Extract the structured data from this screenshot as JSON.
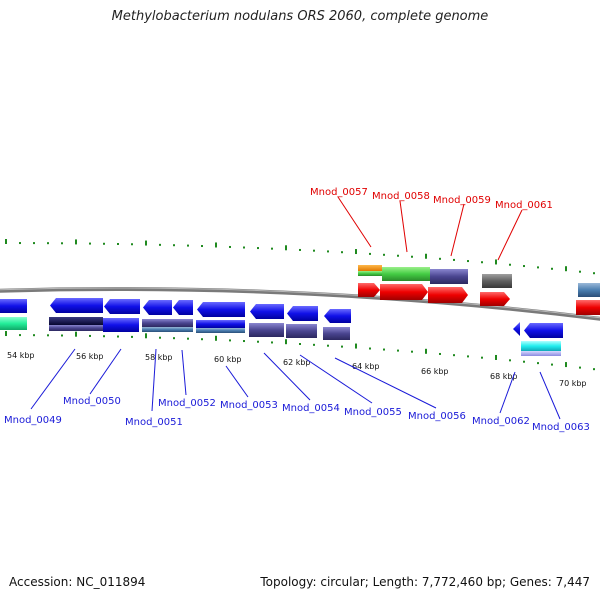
{
  "title": "Methylobacterium nodulans ORS 2060, complete genome",
  "accession_text": "Accession: NC_011894",
  "summary_text": "Topology: circular; Length: 7,772,460 bp; Genes: 7,447",
  "colors": {
    "top_label": "#e00000",
    "bottom_label": "#1a1ad8",
    "backbone": "#7a7a7a",
    "tick": "#1f8a1f"
  },
  "scale_labels": [
    "54 kbp",
    "56 kbp",
    "58 kbp",
    "60 kbp",
    "62 kbp",
    "64 kbp",
    "66 kbp",
    "68 kbp",
    "70 kbp"
  ],
  "top_genes": [
    {
      "name": "Mnod_0057"
    },
    {
      "name": "Mnod_0058"
    },
    {
      "name": "Mnod_0059"
    },
    {
      "name": "Mnod_0061"
    }
  ],
  "bottom_genes": [
    {
      "name": "Mnod_0049"
    },
    {
      "name": "Mnod_0050"
    },
    {
      "name": "Mnod_0051"
    },
    {
      "name": "Mnod_0052"
    },
    {
      "name": "Mnod_0053"
    },
    {
      "name": "Mnod_0054"
    },
    {
      "name": "Mnod_0055"
    },
    {
      "name": "Mnod_0056"
    },
    {
      "name": "Mnod_0062"
    },
    {
      "name": "Mnod_0063"
    }
  ]
}
